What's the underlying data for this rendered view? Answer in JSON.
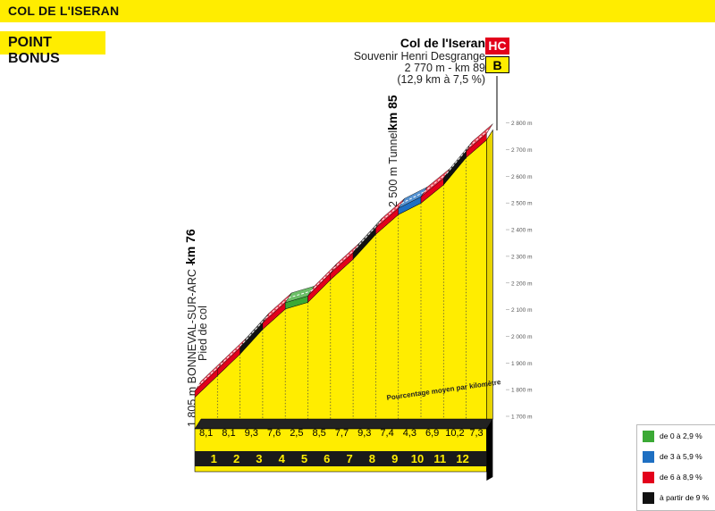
{
  "header": {
    "title": "COL DE L'ISERAN"
  },
  "badge": {
    "label": "POINT BONUS"
  },
  "summit": {
    "name": "Col de l'Iseran",
    "subtitle": "Souvenir Henri Desgrange",
    "alt_km": "2 770 m - km 89",
    "climb": "(12,9 km à 7,5 %)",
    "categories": [
      "HC",
      "B"
    ]
  },
  "start": {
    "km_label": "km 76",
    "place": "1 805 m BONNEVAL-SUR-ARC -",
    "note": "Pied de col"
  },
  "tunnel": {
    "km_label": "km 85",
    "text": "2 500 m Tunnel"
  },
  "avg_label": "Pourcentage moyen par kilomètre",
  "legend": [
    {
      "label": "de 0 à 2,9 %",
      "color": "#3BA935"
    },
    {
      "label": "de 3 à 5,9 %",
      "color": "#1E6FC2"
    },
    {
      "label": "de 6 à 8,9 %",
      "color": "#E3001B"
    },
    {
      "label": "à partir de 9 %",
      "color": "#111111"
    }
  ],
  "chart_data": {
    "type": "area",
    "xlabel": "",
    "ylabel": "",
    "km_markers": [
      "1",
      "2",
      "3",
      "4",
      "5",
      "6",
      "7",
      "8",
      "9",
      "10",
      "11",
      "12"
    ],
    "segment_gradients": [
      "8,1",
      "8,1",
      "9,3",
      "7,6",
      "2,5",
      "8,5",
      "7,7",
      "9,3",
      "7,4",
      "4,3",
      "6,9",
      "10,2",
      "7,3"
    ],
    "y_ticks": [
      "1 700 m",
      "1 800 m",
      "1 900 m",
      "2 000 m",
      "2 100 m",
      "2 200 m",
      "2 300 m",
      "2 400 m",
      "2 500 m",
      "2 600 m",
      "2 700 m",
      "2 800 m"
    ],
    "ylim": [
      1700,
      2800
    ],
    "profile": {
      "x_km": [
        0,
        1,
        2,
        3,
        4,
        5,
        6,
        7,
        8,
        9,
        10,
        11,
        12,
        12.9
      ],
      "altitude_m": [
        1805,
        1886,
        1967,
        2060,
        2136,
        2161,
        2246,
        2323,
        2416,
        2490,
        2533,
        2602,
        2704,
        2770
      ]
    },
    "gradient_classes": [
      "red",
      "red",
      "black",
      "red",
      "green",
      "red",
      "red",
      "black",
      "red",
      "blue",
      "red",
      "black",
      "red"
    ]
  }
}
